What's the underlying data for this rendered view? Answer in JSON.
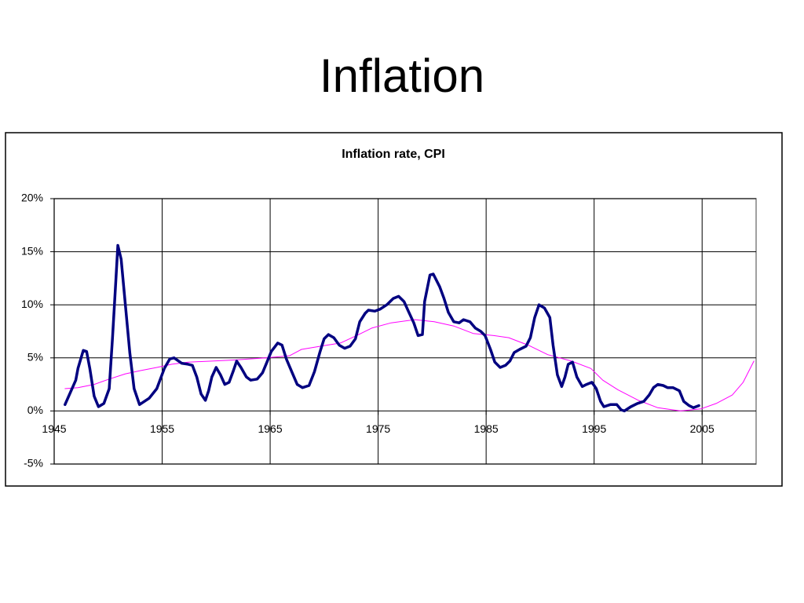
{
  "slide_title": "Inflation",
  "chart_data": {
    "type": "line",
    "title": "Inflation rate, CPI",
    "xlim": [
      1945,
      2010
    ],
    "xticks": [
      1945,
      1955,
      1965,
      1975,
      1985,
      1995,
      2005
    ],
    "ylim": [
      -5,
      20
    ],
    "yticks": [
      {
        "value": -5,
        "label": "-5%"
      },
      {
        "value": 0,
        "label": "0%"
      },
      {
        "value": 5,
        "label": "5%"
      },
      {
        "value": 10,
        "label": "10%"
      },
      {
        "value": 15,
        "label": "15%"
      },
      {
        "value": 20,
        "label": "20%"
      }
    ],
    "grid": true,
    "series": [
      {
        "color": "#000080",
        "width": 3.5,
        "x": [
          1946.0,
          1947.0,
          1947.2,
          1947.7,
          1948.0,
          1948.3,
          1948.7,
          1949.1,
          1949.6,
          1950.1,
          1950.4,
          1950.7,
          1950.9,
          1951.2,
          1951.6,
          1952.0,
          1952.4,
          1952.9,
          1953.8,
          1954.5,
          1955.2,
          1955.7,
          1956.1,
          1956.8,
          1957.4,
          1957.8,
          1958.2,
          1958.6,
          1959.0,
          1959.3,
          1959.6,
          1960.0,
          1960.4,
          1960.8,
          1961.2,
          1961.6,
          1961.9,
          1962.3,
          1962.8,
          1963.2,
          1963.8,
          1964.3,
          1964.7,
          1965.1,
          1965.7,
          1966.1,
          1966.5,
          1967.0,
          1967.5,
          1968.0,
          1968.6,
          1969.1,
          1969.6,
          1970.0,
          1970.4,
          1970.9,
          1971.4,
          1971.9,
          1972.4,
          1972.9,
          1973.3,
          1973.8,
          1974.1,
          1974.7,
          1975.2,
          1975.8,
          1976.4,
          1976.9,
          1977.4,
          1977.8,
          1978.3,
          1978.7,
          1979.1,
          1979.3,
          1979.8,
          1980.1,
          1980.7,
          1981.1,
          1981.5,
          1982.0,
          1982.5,
          1982.9,
          1983.5,
          1984.0,
          1984.5,
          1984.9,
          1985.4,
          1985.8,
          1986.3,
          1986.8,
          1987.2,
          1987.6,
          1988.1,
          1988.7,
          1989.1,
          1989.5,
          1989.9,
          1990.4,
          1990.9,
          1991.2,
          1991.6,
          1992.0,
          1992.3,
          1992.6,
          1993.0,
          1993.4,
          1993.9,
          1994.3,
          1994.8,
          1995.2,
          1995.6,
          1995.9,
          1996.5,
          1997.1,
          1997.5,
          1997.8,
          1998.4,
          1999.0,
          1999.6,
          2000.1,
          2000.5,
          2000.9,
          2001.4,
          2001.8,
          2002.3,
          2002.9,
          2003.3,
          2003.8,
          2004.2,
          2004.7
        ],
        "values": [
          0.6,
          2.9,
          4.0,
          5.7,
          5.6,
          4.0,
          1.4,
          0.4,
          0.7,
          2.1,
          6.9,
          12.1,
          15.6,
          14.3,
          9.9,
          5.5,
          2.1,
          0.6,
          1.2,
          2.1,
          4.0,
          4.9,
          5.0,
          4.5,
          4.4,
          4.3,
          3.2,
          1.6,
          1.0,
          1.9,
          3.2,
          4.1,
          3.4,
          2.5,
          2.7,
          3.8,
          4.7,
          4.1,
          3.2,
          2.9,
          3.0,
          3.6,
          4.6,
          5.6,
          6.4,
          6.2,
          4.9,
          3.7,
          2.5,
          2.2,
          2.4,
          3.7,
          5.5,
          6.8,
          7.2,
          6.9,
          6.2,
          5.9,
          6.1,
          6.8,
          8.4,
          9.2,
          9.5,
          9.4,
          9.6,
          10.0,
          10.6,
          10.8,
          10.3,
          9.4,
          8.3,
          7.1,
          7.2,
          10.3,
          12.8,
          12.9,
          11.7,
          10.6,
          9.3,
          8.4,
          8.3,
          8.6,
          8.4,
          7.8,
          7.5,
          7.1,
          5.8,
          4.6,
          4.1,
          4.3,
          4.7,
          5.5,
          5.8,
          6.1,
          6.9,
          8.8,
          10.0,
          9.7,
          8.8,
          6.2,
          3.4,
          2.3,
          3.2,
          4.4,
          4.6,
          3.2,
          2.3,
          2.5,
          2.7,
          2.1,
          0.9,
          0.4,
          0.6,
          0.6,
          0.1,
          0.0,
          0.4,
          0.7,
          0.9,
          1.5,
          2.2,
          2.5,
          2.4,
          2.2,
          2.2,
          1.9,
          0.9,
          0.5,
          0.3,
          0.5
        ]
      },
      {
        "color": "#ff00ff",
        "width": 1,
        "x": [
          1946.0,
          1947.2,
          1948.7,
          1950.1,
          1951.6,
          1953.0,
          1954.5,
          1955.9,
          1957.4,
          1959.6,
          1961.7,
          1964.6,
          1966.8,
          1967.9,
          1969.7,
          1971.5,
          1973.0,
          1974.4,
          1976.2,
          1978.4,
          1980.2,
          1982.0,
          1983.8,
          1985.7,
          1987.1,
          1988.9,
          1990.7,
          1992.9,
          1994.7,
          1995.8,
          1997.2,
          1999.1,
          2000.9,
          2003.0,
          2004.9,
          2006.3,
          2007.8,
          2008.8,
          2009.8
        ],
        "values": [
          2.1,
          2.2,
          2.5,
          3.0,
          3.5,
          3.8,
          4.1,
          4.4,
          4.6,
          4.7,
          4.8,
          5.0,
          5.2,
          5.8,
          6.1,
          6.4,
          7.1,
          7.8,
          8.3,
          8.6,
          8.4,
          8.0,
          7.3,
          7.1,
          6.9,
          6.2,
          5.3,
          4.7,
          4.0,
          2.9,
          2.0,
          1.0,
          0.3,
          0.0,
          0.2,
          0.7,
          1.5,
          2.7,
          4.7
        ]
      }
    ]
  }
}
